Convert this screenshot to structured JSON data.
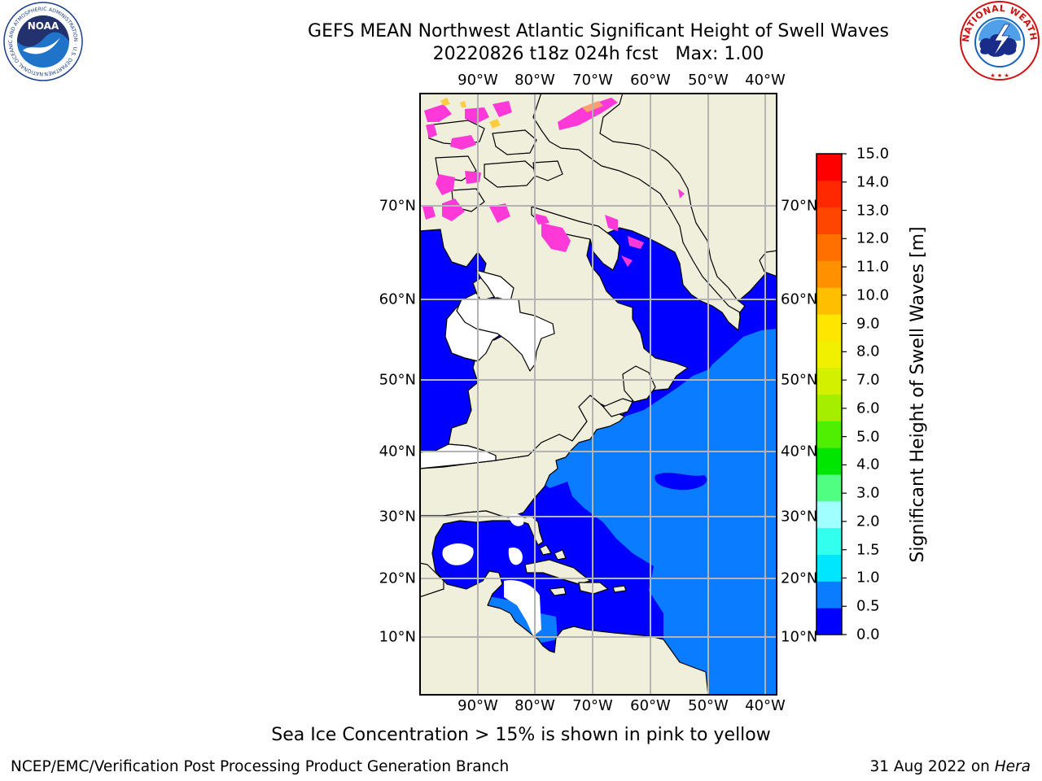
{
  "title": {
    "line1": "GEFS MEAN Northwest Atlantic Significant Height of Swell Waves",
    "line2": "20220826 t18z 024h fcst   Max: 1.00"
  },
  "logos": {
    "left": {
      "icon": "noaa-logo",
      "ring_text": "NATIONAL OCEANIC AND ATMOSPHERIC ADMINISTRATION · U.S. DEPARTMENT OF COMMERCE",
      "center_text": "NOAA"
    },
    "right": {
      "icon": "national-weather-service-logo",
      "ring_text": "NATIONAL WEATHER SERVICE"
    }
  },
  "map": {
    "lon_ticks": [
      "90°W",
      "80°W",
      "70°W",
      "60°W",
      "50°W",
      "40°W"
    ],
    "lat_ticks": [
      "70°N",
      "60°N",
      "50°N",
      "40°N",
      "30°N",
      "20°N",
      "10°N"
    ],
    "colors": {
      "land": "#efefdc",
      "ocean_low": "#0000ff",
      "ocean_mid": "#0a7cff",
      "grid": "#b4b4b4"
    }
  },
  "colorbar": {
    "ticks": [
      "15.0",
      "14.0",
      "13.0",
      "12.0",
      "11.0",
      "10.0",
      "9.0",
      "8.0",
      "7.0",
      "6.0",
      "5.0",
      "4.0",
      "3.0",
      "2.0",
      "1.5",
      "1.0",
      "0.5",
      "0.0"
    ],
    "label": "Significant Height of Swell Waves [m]",
    "colors_bottom_to_top": [
      "#0000ff",
      "#0a7cff",
      "#00e6ff",
      "#32ffee",
      "#a0ffff",
      "#50ff82",
      "#00e600",
      "#50ee00",
      "#a6ee00",
      "#d2f000",
      "#f0f000",
      "#ffe600",
      "#ffbe00",
      "#ff9100",
      "#ff7000",
      "#ff4600",
      "#ff2800",
      "#ff0000"
    ]
  },
  "footer": {
    "note": "Sea Ice Concentration > 15% is shown in pink to yellow",
    "credit_left": "NCEP/EMC/Verification Post Processing Product Generation Branch",
    "credit_right_prefix": "31 Aug 2022 on ",
    "credit_right_host": "Hera"
  }
}
